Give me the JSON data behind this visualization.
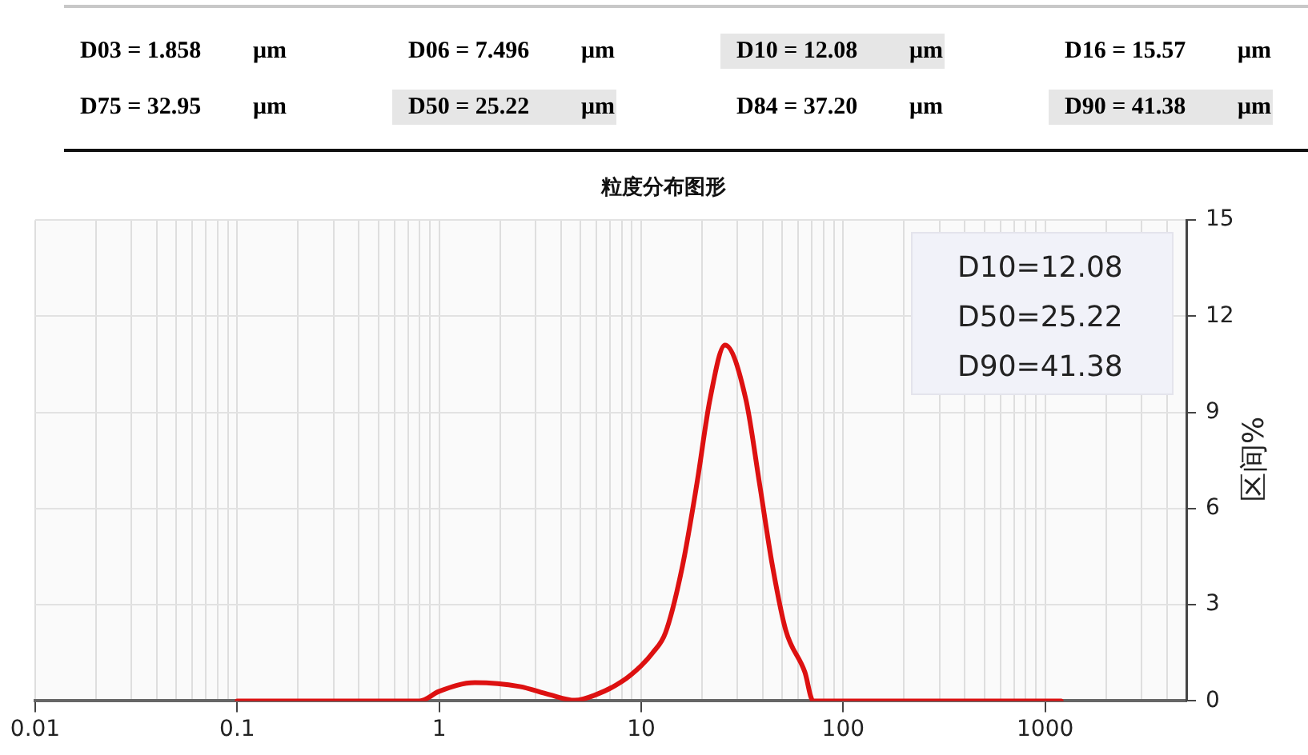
{
  "chart_data": {
    "type": "line",
    "title": "粒度分布图形",
    "ylabel": "区间%",
    "annotations": [
      "D03 = 1.858 μm",
      "D06 = 7.496 μm",
      "D10 = 12.08 μm",
      "D16 = 15.57 μm",
      "D75 = 32.95 μm",
      "D50 = 25.22 μm",
      "D84 = 37.20 μm",
      "D90 = 41.38 μm",
      "D10=12.08",
      "D50=25.22",
      "D90=41.38"
    ],
    "series": [
      {
        "color": "#dd1111",
        "x": [
          0.1,
          0.5,
          0.8,
          1.0,
          1.5,
          2.5,
          3.5,
          4.7,
          6,
          8,
          10,
          11.4,
          13.2,
          16,
          18.9,
          21.9,
          26,
          33,
          38.5,
          44.7,
          52,
          64.6,
          71,
          200,
          1200
        ],
        "values": [
          0,
          0,
          0,
          0.3,
          0.57,
          0.45,
          0.2,
          0.02,
          0.2,
          0.6,
          1.1,
          1.5,
          2.13,
          4.2,
          6.8,
          9.4,
          11.1,
          9.4,
          6.8,
          4.2,
          2.2,
          0.9,
          0,
          0,
          0
        ]
      }
    ],
    "xlim": [
      0.01,
      5000
    ],
    "xticks": [
      0.01,
      {
        "value": 0.02,
        "label": null
      },
      {
        "value": 0.03,
        "label": null
      },
      {
        "value": 0.04,
        "label": null
      },
      {
        "value": 0.05,
        "label": null
      },
      {
        "value": 0.06,
        "label": null
      },
      {
        "value": 0.07,
        "label": null
      },
      {
        "value": 0.08,
        "label": null
      },
      {
        "value": 0.09,
        "label": null
      },
      0.1,
      {
        "value": 0.2,
        "label": null
      },
      {
        "value": 0.3,
        "label": null
      },
      {
        "value": 0.4,
        "label": null
      },
      {
        "value": 0.5,
        "label": null
      },
      {
        "value": 0.6,
        "label": null
      },
      {
        "value": 0.7,
        "label": null
      },
      {
        "value": 0.8,
        "label": null
      },
      {
        "value": 0.9,
        "label": null
      },
      1,
      {
        "value": 2,
        "label": null
      },
      {
        "value": 3,
        "label": null
      },
      {
        "value": 4,
        "label": null
      },
      {
        "value": 5,
        "label": null
      },
      {
        "value": 6,
        "label": null
      },
      {
        "value": 7,
        "label": null
      },
      {
        "value": 8,
        "label": null
      },
      {
        "value": 9,
        "label": null
      },
      10,
      {
        "value": 20,
        "label": null
      },
      {
        "value": 30,
        "label": null
      },
      {
        "value": 40,
        "label": null
      },
      {
        "value": 50,
        "label": null
      },
      {
        "value": 60,
        "label": null
      },
      {
        "value": 70,
        "label": null
      },
      {
        "value": 80,
        "label": null
      },
      {
        "value": 90,
        "label": null
      },
      100,
      {
        "value": 200,
        "label": null
      },
      {
        "value": 300,
        "label": null
      },
      {
        "value": 400,
        "label": null
      },
      {
        "value": 500,
        "label": null
      },
      {
        "value": 600,
        "label": null
      },
      {
        "value": 700,
        "label": null
      },
      {
        "value": 800,
        "label": null
      },
      {
        "value": 900,
        "label": null
      },
      1000,
      {
        "value": 2000,
        "label": null
      },
      {
        "value": 3000,
        "label": null
      },
      {
        "value": 4000,
        "label": null
      },
      {
        "value": 5000,
        "label": null
      }
    ],
    "ylim": [
      0,
      15
    ],
    "yticks": [
      0,
      3,
      6,
      9,
      12,
      15
    ],
    "log": "x",
    "grid": true,
    "legend": false,
    "marker": "none",
    "line_style": "solid"
  }
}
